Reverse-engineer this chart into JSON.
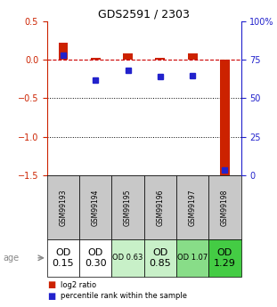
{
  "title": "GDS2591 / 2303",
  "samples": [
    "GSM99193",
    "GSM99194",
    "GSM99195",
    "GSM99196",
    "GSM99197",
    "GSM99198"
  ],
  "log2_ratio": [
    0.22,
    0.03,
    0.08,
    0.03,
    0.08,
    -1.5
  ],
  "percentile_rank": [
    78,
    62,
    68,
    64,
    65,
    3
  ],
  "ylim_left": [
    -1.5,
    0.5
  ],
  "ylim_right": [
    0,
    100
  ],
  "yticks_left": [
    0.5,
    0,
    -0.5,
    -1,
    -1.5
  ],
  "yticks_right": [
    100,
    75,
    50,
    25,
    0
  ],
  "row_gsm_bg": "#c8c8c8",
  "row_age_colors": [
    "#ffffff",
    "#ffffff",
    "#c8f0c8",
    "#c8f0c8",
    "#88dd88",
    "#44cc44"
  ],
  "row_age_labels": [
    "OD\n0.15",
    "OD\n0.30",
    "OD 0.63",
    "OD\n0.85",
    "OD 1.07",
    "OD\n1.29"
  ],
  "row_age_fontsizes": [
    8,
    8,
    6,
    8,
    6,
    8
  ],
  "bar_color_red": "#cc2200",
  "bar_color_blue": "#2222cc",
  "zero_line_color": "#cc0000",
  "dotted_line_color": "#000000",
  "legend_red_label": "log2 ratio",
  "legend_blue_label": "percentile rank within the sample",
  "left_yaxis_color": "#cc2200",
  "right_yaxis_color": "#2222cc",
  "age_label": "age",
  "bar_width": 0.3
}
